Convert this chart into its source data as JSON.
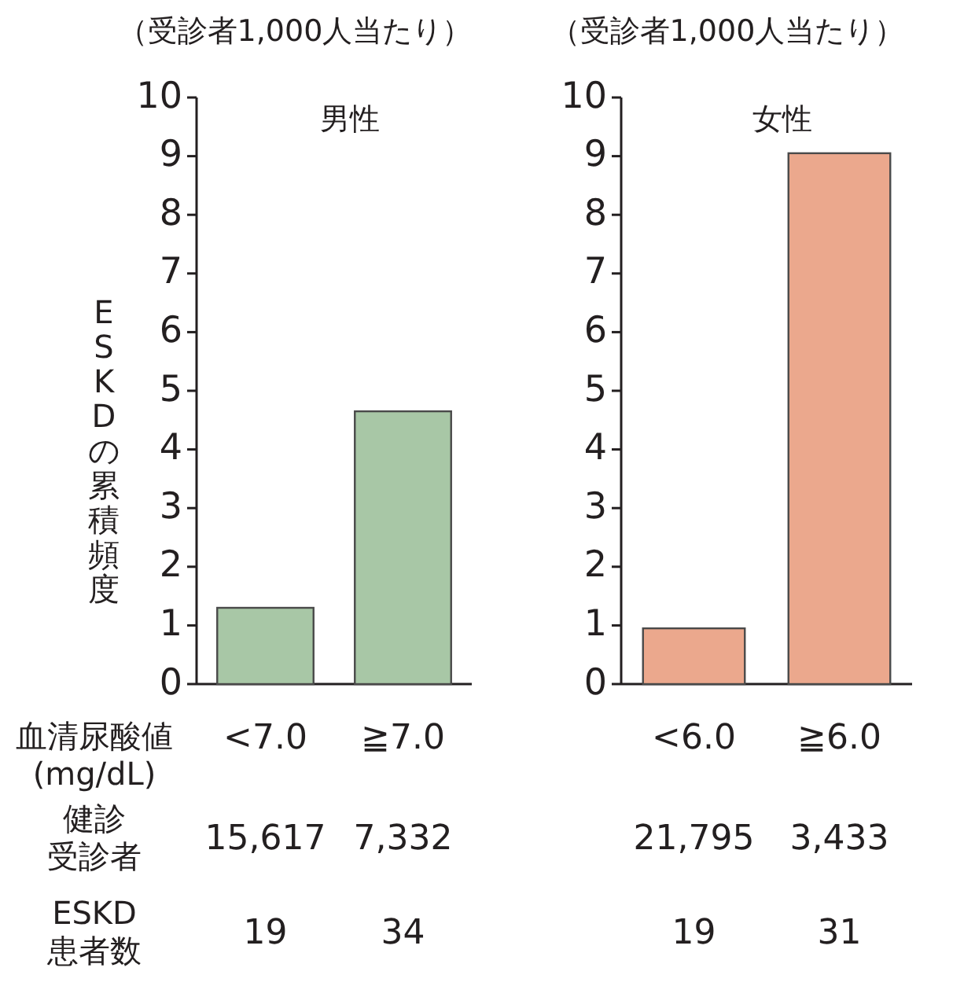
{
  "chart_data": [
    {
      "type": "bar",
      "title": "（受診者1,000人当たり）",
      "subtitle": "男性",
      "ylabel": "ESKDの累積頻度",
      "xlabel": "血清尿酸値\n(mg/dL)",
      "categories": [
        "<7.0",
        "≧7.0"
      ],
      "values": [
        1.3,
        4.65
      ],
      "color": "#a8c7a6",
      "ylim": [
        0,
        10
      ],
      "yticks": [
        0,
        1,
        2,
        3,
        4,
        5,
        6,
        7,
        8,
        9,
        10
      ],
      "grid": false,
      "annotations": [
        "健診",
        "受診者",
        "ESKD",
        "患者数",
        "15,617",
        "7,332",
        "19",
        "34"
      ]
    },
    {
      "type": "bar",
      "title": "（受診者1,000人当たり）",
      "subtitle": "女性",
      "categories": [
        "<6.0",
        "≧6.0"
      ],
      "values": [
        0.95,
        9.05
      ],
      "color": "#eba88d",
      "ylim": [
        0,
        10
      ],
      "yticks": [
        0,
        1,
        2,
        3,
        4,
        5,
        6,
        7,
        8,
        9,
        10
      ],
      "grid": false,
      "annotations": [
        "21,795",
        "3,433",
        "19",
        "31"
      ]
    }
  ]
}
